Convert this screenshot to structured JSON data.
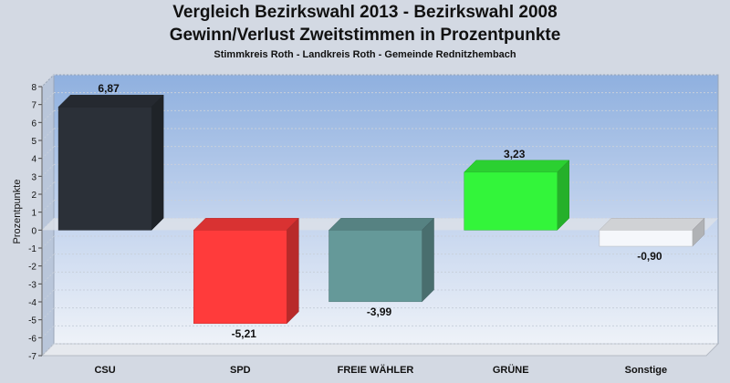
{
  "chart_data": {
    "type": "bar",
    "title": "Vergleich Bezirkswahl 2013 - Bezirkswahl 2008",
    "title_line2": "Gewinn/Verlust Zweitstimmen in Prozentpunkte",
    "subtitle": "Stimmkreis Roth - Landkreis Roth - Gemeinde Rednitzhembach",
    "xlabel": "",
    "ylabel": "Prozentpunkte",
    "ylim": [
      -7,
      8
    ],
    "yticks": [
      8,
      7,
      6,
      5,
      4,
      3,
      2,
      1,
      0,
      -1,
      -2,
      -3,
      -4,
      -5,
      -6,
      -7
    ],
    "grid": true,
    "legend": "none",
    "categories": [
      "CSU",
      "SPD",
      "FREIE WÄHLER",
      "GRÜNE",
      "Sonstige"
    ],
    "values": [
      6.87,
      -5.21,
      -3.99,
      3.23,
      -0.9
    ],
    "value_labels": [
      "6,87",
      "-5,21",
      "-3,99",
      "3,23",
      "-0,90"
    ],
    "colors": [
      "#2b3038",
      "#ff3b3b",
      "#659999",
      "#33f53a",
      "#f5f7fb"
    ]
  }
}
